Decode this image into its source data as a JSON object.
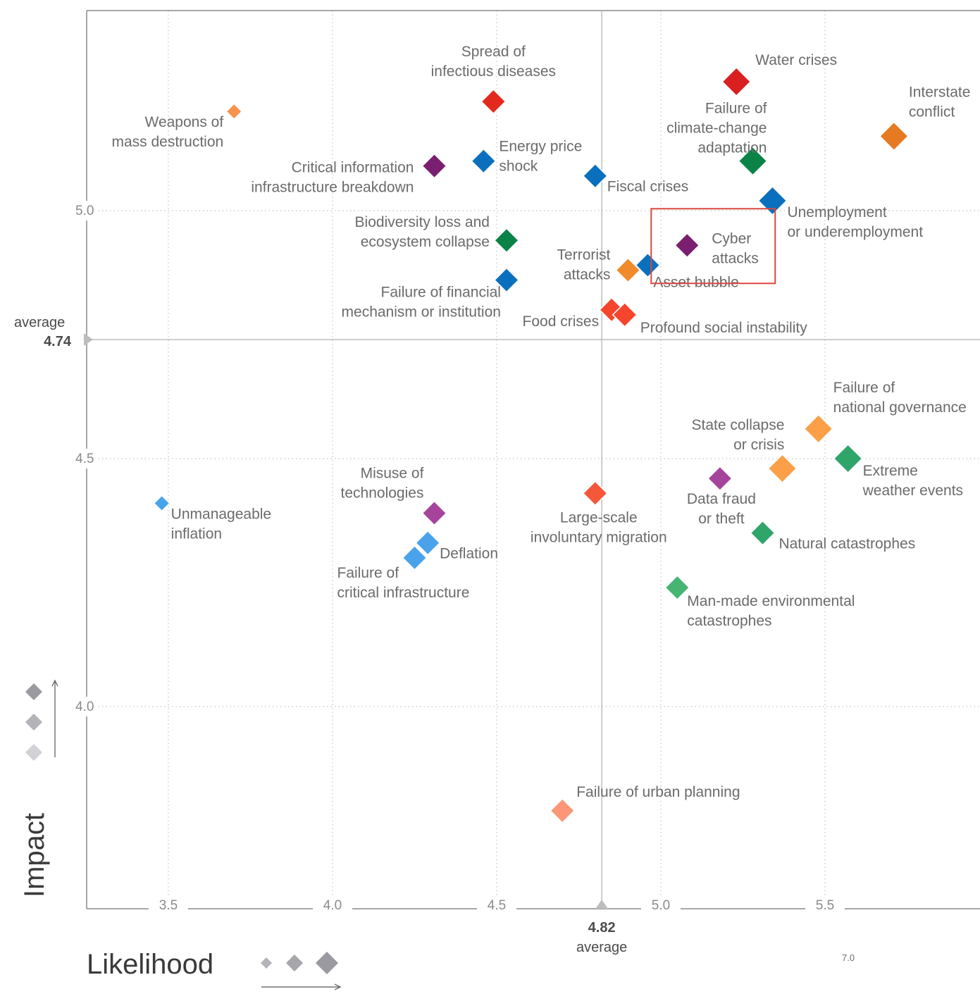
{
  "chart_data": {
    "type": "scatter",
    "xlabel": "Likelihood",
    "ylabel": "Impact",
    "xlim": [
      3.25,
      6.0
    ],
    "ylim": [
      3.58,
      5.4
    ],
    "x_ticks": [
      "3.5",
      "4.0",
      "4.5",
      "5.0",
      "5.5"
    ],
    "y_ticks": [
      "5.0",
      "4.5",
      "4.0"
    ],
    "average_likelihood": {
      "word": "average",
      "value": "4.82"
    },
    "average_impact": {
      "word": "average",
      "value": "4.74"
    },
    "corner_note": "7.0",
    "highlighted": "Cyber attacks",
    "points": [
      {
        "label": [
          "Weapons of",
          "mass destruction"
        ],
        "x": 3.7,
        "y": 5.2,
        "color": "#f7944a",
        "size": "small"
      },
      {
        "label": [
          "Spread of",
          "infectious diseases"
        ],
        "x": 4.49,
        "y": 5.22,
        "color": "#e3281e",
        "size": "medium"
      },
      {
        "label": [
          "Water crises"
        ],
        "x": 5.23,
        "y": 5.26,
        "color": "#d91f1f",
        "size": "large"
      },
      {
        "label": [
          "Interstate",
          "conflict"
        ],
        "x": 5.71,
        "y": 5.15,
        "color": "#e67a22",
        "size": "large"
      },
      {
        "label": [
          "Failure of",
          "climate-change",
          "adaptation"
        ],
        "x": 5.28,
        "y": 5.1,
        "color": "#0b8246",
        "size": "large"
      },
      {
        "label": [
          "Critical information",
          "infrastructure breakdown"
        ],
        "x": 4.31,
        "y": 5.09,
        "color": "#7a1f6f",
        "size": "medium"
      },
      {
        "label": [
          "Energy price",
          "shock"
        ],
        "x": 4.46,
        "y": 5.1,
        "color": "#0a70bd",
        "size": "medium"
      },
      {
        "label": [
          "Fiscal crises"
        ],
        "x": 4.8,
        "y": 5.07,
        "color": "#0a70bd",
        "size": "medium"
      },
      {
        "label": [
          "Unemployment",
          "or underemployment"
        ],
        "x": 5.34,
        "y": 5.02,
        "color": "#0a70bd",
        "size": "large"
      },
      {
        "label": [
          "Biodiversity loss and",
          "ecosystem collapse"
        ],
        "x": 4.53,
        "y": 4.94,
        "color": "#0b8246",
        "size": "medium"
      },
      {
        "label": [
          "Cyber",
          "attacks"
        ],
        "x": 5.08,
        "y": 4.93,
        "color": "#7a1f6f",
        "size": "medium"
      },
      {
        "label": [
          "Terrorist",
          "attacks"
        ],
        "x": 4.9,
        "y": 4.88,
        "color": "#f08a2a",
        "size": "medium"
      },
      {
        "label": [
          "Asset bubble"
        ],
        "x": 4.96,
        "y": 4.89,
        "color": "#0a70bd",
        "size": "medium"
      },
      {
        "label": [
          "Failure of financial",
          "mechanism or institution"
        ],
        "x": 4.53,
        "y": 4.86,
        "color": "#0a70bd",
        "size": "medium"
      },
      {
        "label": [
          "Food crises"
        ],
        "x": 4.85,
        "y": 4.8,
        "color": "#f5452d",
        "size": "medium"
      },
      {
        "label": [
          "Profound social instability"
        ],
        "x": 4.89,
        "y": 4.79,
        "color": "#f5452d",
        "size": "medium"
      },
      {
        "label": [
          "Failure of",
          "national governance"
        ],
        "x": 5.48,
        "y": 4.56,
        "color": "#fb9f48",
        "size": "large"
      },
      {
        "label": [
          "Extreme",
          "weather events"
        ],
        "x": 5.57,
        "y": 4.5,
        "color": "#2fa56a",
        "size": "large"
      },
      {
        "label": [
          "State collapse",
          "or crisis"
        ],
        "x": 5.37,
        "y": 4.48,
        "color": "#fb9f48",
        "size": "large"
      },
      {
        "label": [
          "Data fraud",
          "or theft"
        ],
        "x": 5.18,
        "y": 4.46,
        "color": "#a6449c",
        "size": "medium"
      },
      {
        "label": [
          "Large-scale",
          "involuntary migration"
        ],
        "x": 4.8,
        "y": 4.43,
        "color": "#f5573a",
        "size": "medium"
      },
      {
        "label": [
          "Unmanageable",
          "inflation"
        ],
        "x": 3.48,
        "y": 4.41,
        "color": "#4aa3ea",
        "size": "small"
      },
      {
        "label": [
          "Misuse of",
          "technologies"
        ],
        "x": 4.31,
        "y": 4.39,
        "color": "#a6449c",
        "size": "medium"
      },
      {
        "label": [
          "Natural catastrophes"
        ],
        "x": 5.31,
        "y": 4.35,
        "color": "#2fa56a",
        "size": "medium"
      },
      {
        "label": [
          "Deflation"
        ],
        "x": 4.29,
        "y": 4.33,
        "color": "#4aa3ea",
        "size": "medium"
      },
      {
        "label": [
          "Failure of",
          "critical infrastructure"
        ],
        "x": 4.25,
        "y": 4.3,
        "color": "#4aa3ea",
        "size": "medium"
      },
      {
        "label": [
          "Man-made environmental",
          "catastrophes"
        ],
        "x": 5.05,
        "y": 4.24,
        "color": "#46b574",
        "size": "medium"
      },
      {
        "label": [
          "Failure of urban planning"
        ],
        "x": 4.7,
        "y": 3.79,
        "color": "#fb9777",
        "size": "medium"
      }
    ]
  }
}
